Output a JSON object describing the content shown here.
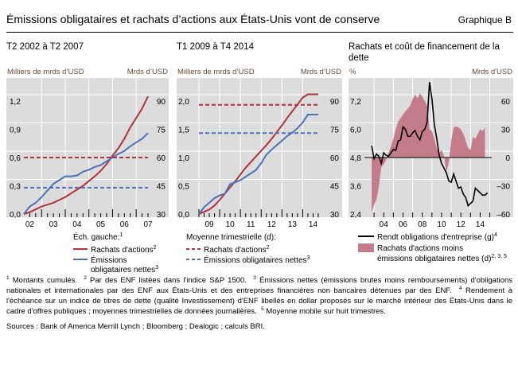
{
  "title": "Émissions obligataires et rachats d’actions aux États-Unis vont de conserve",
  "figure_label": "Graphique B",
  "colors": {
    "red": "#b2323a",
    "blue": "#4a72b8",
    "black": "#000000",
    "area": "#c47c8a",
    "panel_bg": "#dcdcdc",
    "unit_left": "#8a4a2a",
    "unit_right": "#8a4a2a"
  },
  "chart_data": [
    {
      "type": "line",
      "title": "T2 2002 à T2 2007",
      "ylabel_left": "Milliers de mrds d’USD",
      "ylabel_right": "Mrds d’USD",
      "ylim_left": [
        0,
        1.2
      ],
      "ylim_right": [
        30,
        90
      ],
      "yticks_left": [
        "0,0",
        "0,3",
        "0,6",
        "0,9",
        "1,2"
      ],
      "yticks_right": [
        "30",
        "45",
        "60",
        "75",
        "90"
      ],
      "xticks": [
        "02",
        "03",
        "04",
        "05",
        "06",
        "07"
      ],
      "xlim": [
        2002.25,
        2007.5
      ],
      "grid": true,
      "legend_heading": "Éch. gauche:",
      "legend_heading_sup": "1",
      "series": [
        {
          "name": "Rachats d'actions",
          "sup": "2",
          "axis": "left",
          "style": "solid",
          "color": "red",
          "x": [
            2002.25,
            2002.5,
            2002.75,
            2003,
            2003.25,
            2003.5,
            2003.75,
            2004,
            2004.25,
            2004.5,
            2004.75,
            2005,
            2005.25,
            2005.5,
            2005.75,
            2006,
            2006.25,
            2006.5,
            2006.75,
            2007,
            2007.25,
            2007.5
          ],
          "values": [
            0,
            0.02,
            0.05,
            0.08,
            0.1,
            0.12,
            0.15,
            0.18,
            0.22,
            0.26,
            0.3,
            0.35,
            0.4,
            0.46,
            0.53,
            0.62,
            0.7,
            0.8,
            0.92,
            1.02,
            1.12,
            1.25
          ]
        },
        {
          "name": "Émissions obligataires nettes",
          "sup": "3",
          "axis": "left",
          "style": "solid",
          "color": "blue",
          "x": [
            2002.25,
            2002.5,
            2002.75,
            2003,
            2003.25,
            2003.5,
            2003.75,
            2004,
            2004.25,
            2004.5,
            2004.75,
            2005,
            2005.25,
            2005.5,
            2005.75,
            2006,
            2006.25,
            2006.5,
            2006.75,
            2007,
            2007.25,
            2007.5
          ],
          "values": [
            0,
            0.08,
            0.12,
            0.18,
            0.25,
            0.32,
            0.36,
            0.4,
            0.4,
            0.41,
            0.45,
            0.47,
            0.5,
            0.52,
            0.56,
            0.6,
            0.64,
            0.67,
            0.72,
            0.76,
            0.8,
            0.86
          ]
        },
        {
          "axis": "right",
          "style": "dashed",
          "color": "red",
          "values": [
            60
          ]
        },
        {
          "axis": "right",
          "style": "dashed",
          "color": "blue",
          "values": [
            44
          ]
        }
      ]
    },
    {
      "type": "line",
      "title": "T1 2009 à T4 2014",
      "ylabel_left": "Milliers de mrds d’USD",
      "ylabel_right": "Mrds d’USD",
      "ylim_left": [
        0,
        2.0
      ],
      "ylim_right": [
        30,
        90
      ],
      "yticks_left": [
        "0,0",
        "0,5",
        "1,0",
        "1,5",
        "2,0"
      ],
      "yticks_right": [
        "30",
        "45",
        "60",
        "75",
        "90"
      ],
      "xticks": [
        "09",
        "10",
        "11",
        "12",
        "13",
        "14"
      ],
      "xlim": [
        2009.0,
        2014.75
      ],
      "grid": true,
      "legend_heading": "Moyenne trimestrielle (d):",
      "series": [
        {
          "axis": "left",
          "style": "solid",
          "color": "red",
          "x": [
            2009,
            2009.25,
            2009.5,
            2009.75,
            2010,
            2010.25,
            2010.5,
            2010.75,
            2011,
            2011.25,
            2011.5,
            2011.75,
            2012,
            2012.25,
            2012.5,
            2012.75,
            2013,
            2013.25,
            2013.5,
            2013.75,
            2014,
            2014.25,
            2014.5,
            2014.75
          ],
          "values": [
            0,
            0.04,
            0.08,
            0.15,
            0.25,
            0.36,
            0.47,
            0.58,
            0.7,
            0.82,
            0.92,
            1.02,
            1.12,
            1.22,
            1.33,
            1.45,
            1.57,
            1.7,
            1.82,
            1.94,
            2.06,
            2.12,
            2.12,
            2.12
          ]
        },
        {
          "axis": "left",
          "style": "solid",
          "color": "blue",
          "x": [
            2009,
            2009.25,
            2009.5,
            2009.75,
            2010,
            2010.25,
            2010.5,
            2010.75,
            2011,
            2011.25,
            2011.5,
            2011.75,
            2012,
            2012.25,
            2012.5,
            2012.75,
            2013,
            2013.25,
            2013.5,
            2013.75,
            2014,
            2014.25,
            2014.5,
            2014.75
          ],
          "values": [
            0,
            0.12,
            0.2,
            0.28,
            0.33,
            0.36,
            0.53,
            0.56,
            0.6,
            0.66,
            0.72,
            0.78,
            0.9,
            1.05,
            1.14,
            1.22,
            1.3,
            1.38,
            1.44,
            1.52,
            1.62,
            1.76,
            1.76,
            1.76
          ]
        },
        {
          "name": "Rachats d'actions",
          "sup": "2",
          "axis": "right",
          "style": "dashed",
          "color": "red",
          "values": [
            88
          ]
        },
        {
          "name": "Émissions obligataires nettes",
          "sup": "3",
          "axis": "right",
          "style": "dashed",
          "color": "blue",
          "values": [
            73
          ]
        }
      ]
    },
    {
      "type": "line+area",
      "title": "Rachats et coût de financement de la dette",
      "ylabel_left": "%",
      "ylabel_right": "Mrds d'USD",
      "ylim_left": [
        2.4,
        7.2
      ],
      "ylim_right": [
        -60,
        60
      ],
      "yticks_left": [
        "2,4",
        "3,6",
        "4,8",
        "6,0",
        "7,2"
      ],
      "yticks_right": [
        "–60",
        "–30",
        "0",
        "30",
        "60"
      ],
      "xticks": [
        "04",
        "06",
        "08",
        "10",
        "12",
        "14"
      ],
      "xlim": [
        2002.0,
        2015.2
      ],
      "grid": true,
      "series": [
        {
          "name": "Rendt obligations d'entreprise (g)",
          "sup": "4",
          "axis": "left",
          "type": "line",
          "color": "black",
          "x": [
            2002.75,
            2003,
            2003.25,
            2003.5,
            2003.75,
            2004,
            2004.25,
            2004.5,
            2004.75,
            2005,
            2005.25,
            2005.5,
            2005.75,
            2006,
            2006.25,
            2006.5,
            2006.75,
            2007,
            2007.25,
            2007.5,
            2007.75,
            2008,
            2008.25,
            2008.5,
            2008.75,
            2009,
            2009.25,
            2009.5,
            2009.75,
            2010,
            2010.25,
            2010.5,
            2010.75,
            2011,
            2011.25,
            2011.5,
            2011.75,
            2012,
            2012.25,
            2012.5,
            2012.75,
            2013,
            2013.25,
            2013.5,
            2013.75,
            2014,
            2014.25,
            2014.5,
            2014.75
          ],
          "values": [
            5.3,
            4.75,
            4.95,
            4.85,
            4.55,
            5.0,
            4.9,
            4.85,
            5.0,
            5.15,
            5.1,
            5.5,
            5.55,
            6.1,
            6.0,
            5.7,
            5.7,
            5.85,
            5.95,
            5.7,
            5.55,
            5.9,
            6.0,
            6.3,
            8.0,
            7.3,
            6.2,
            5.6,
            4.9,
            4.55,
            4.35,
            4.15,
            3.8,
            3.75,
            4.1,
            3.8,
            3.5,
            3.55,
            3.25,
            3.1,
            2.75,
            2.85,
            2.95,
            3.5,
            3.4,
            3.3,
            3.2,
            3.2,
            3.3
          ]
        },
        {
          "name": "Rachats d'actions moins émissions obligataires nettes (d)",
          "sup": "2, 3, 5",
          "axis": "right",
          "type": "area",
          "color": "area",
          "x": [
            2002.75,
            2003,
            2003.25,
            2003.5,
            2003.75,
            2004,
            2004.25,
            2004.5,
            2004.75,
            2005,
            2005.25,
            2005.5,
            2005.75,
            2006,
            2006.25,
            2006.5,
            2006.75,
            2007,
            2007.25,
            2007.5,
            2007.75,
            2008,
            2008.25,
            2008.5,
            2008.75,
            2009,
            2009.25,
            2009.5,
            2009.75,
            2010,
            2010.25,
            2010.5,
            2010.75,
            2011,
            2011.25,
            2011.5,
            2011.75,
            2012,
            2012.25,
            2012.5,
            2012.75,
            2013,
            2013.25,
            2013.5,
            2013.75,
            2014,
            2014.25,
            2014.5
          ],
          "values": [
            -58,
            -50,
            -45,
            -30,
            -10,
            -7,
            -3,
            5,
            12,
            20,
            30,
            38,
            42,
            46,
            49,
            52,
            55,
            62,
            67,
            63,
            68,
            65,
            60,
            55,
            30,
            28,
            20,
            10,
            5,
            8,
            2,
            -15,
            -5,
            18,
            32,
            33,
            32,
            30,
            25,
            18,
            10,
            8,
            22,
            20,
            25,
            30,
            28,
            32
          ]
        }
      ]
    }
  ],
  "footnotes": [
    {
      "num": "1",
      "text": "Montants cumulés."
    },
    {
      "num": "2",
      "text": "Par des ENF listées dans l'indice S&P 1500."
    },
    {
      "num": "3",
      "text": "Émissions nettes (émissions brutes moins remboursements) d'obligations nationales et internationales par des ENF aux États-Unis et des entreprises financières non bancaires détenues par des ENF."
    },
    {
      "num": "4",
      "text": "Rendement à l'échéance sur un indice de titres de dette (qualité Investissement) d'ENF libellés en dollar proposés sur le marché intérieur des États-Unis dans le cadre d'offres publiques ; moyennes trimestrielles de données journalières."
    },
    {
      "num": "5",
      "text": "Moyenne mobile sur huit trimestres."
    }
  ],
  "sources": "Sources : Bank of America Merrill Lynch ; Bloomberg ; Dealogic ; calculs BRI."
}
